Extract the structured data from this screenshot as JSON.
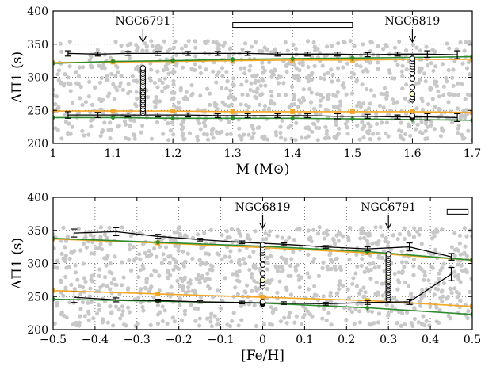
{
  "colors": {
    "background_points": "#c8c8c8",
    "black_series": "#000000",
    "orange_series": "#f5a623",
    "green_series": "#2e8b2e",
    "cluster_point_fill": "#ffffff",
    "cluster_point_yellow": "#ffffcc",
    "grid": "#555555"
  },
  "chart_data": [
    {
      "type": "scatter",
      "xlabel": "M (M⊙)",
      "ylabel": "ΔΠ1 (s)",
      "xlim": [
        1.0,
        1.7
      ],
      "ylim": [
        200,
        400
      ],
      "xticks": [
        "1",
        "1.1",
        "1.2",
        "1.3",
        "1.4",
        "1.5",
        "1.6",
        "1.7"
      ],
      "yticks": [
        "200",
        "250",
        "300",
        "350",
        "400"
      ],
      "grid": "dotted",
      "annotations": [
        {
          "text": "NGC6791",
          "x": 1.15
        },
        {
          "text": "NGC6819",
          "x": 1.6
        }
      ],
      "error_box": {
        "x_range": [
          1.3,
          1.5
        ],
        "y": 379
      },
      "series": [
        {
          "style": "black-errorbars",
          "x": [
            1.025,
            1.075,
            1.125,
            1.175,
            1.225,
            1.275,
            1.325,
            1.375,
            1.425,
            1.475,
            1.525,
            1.575,
            1.625,
            1.675
          ],
          "y": [
            336,
            335,
            336,
            336,
            336,
            336,
            336,
            335,
            335,
            335,
            334,
            335,
            335,
            334
          ],
          "err": [
            4,
            3,
            3,
            3,
            3,
            3,
            3,
            3,
            3,
            3,
            3,
            3,
            5,
            6
          ]
        },
        {
          "style": "black-errorbars",
          "x": [
            1.025,
            1.075,
            1.125,
            1.175,
            1.225,
            1.275,
            1.325,
            1.375,
            1.425,
            1.475,
            1.525,
            1.575,
            1.625,
            1.675
          ],
          "y": [
            243,
            243,
            243,
            243,
            243,
            242,
            242,
            242,
            242,
            241,
            241,
            240,
            240,
            239
          ],
          "err": [
            5,
            4,
            3,
            3,
            3,
            3,
            3,
            3,
            3,
            4,
            3,
            3,
            5,
            6
          ]
        },
        {
          "style": "orange-line",
          "x": [
            1.0,
            1.1,
            1.2,
            1.3,
            1.4,
            1.5,
            1.6,
            1.7
          ],
          "y": [
            322,
            323,
            324,
            325,
            326,
            326,
            327,
            327
          ]
        },
        {
          "style": "orange-line",
          "x": [
            1.0,
            1.1,
            1.2,
            1.3,
            1.4,
            1.5,
            1.6,
            1.7
          ],
          "y": [
            249,
            249,
            249,
            248,
            248,
            248,
            248,
            247
          ]
        },
        {
          "style": "green-line",
          "x": [
            1.0,
            1.1,
            1.2,
            1.3,
            1.4,
            1.5,
            1.6,
            1.7
          ],
          "y": [
            321,
            324,
            325,
            327,
            328,
            329,
            330,
            331
          ]
        },
        {
          "style": "green-line",
          "x": [
            1.0,
            1.1,
            1.2,
            1.3,
            1.4,
            1.5,
            1.6,
            1.7
          ],
          "y": [
            239,
            239,
            238,
            238,
            238,
            237,
            236,
            235
          ]
        }
      ],
      "cluster_points": [
        {
          "x": 1.15,
          "y": [
            246,
            249,
            252,
            256,
            259,
            262,
            265,
            268,
            271,
            274,
            277,
            280,
            283,
            286,
            290,
            293,
            296,
            299,
            302,
            305,
            308,
            311,
            314
          ]
        },
        {
          "x": 1.6,
          "y": [
            239,
            240,
            241,
            242,
            266,
            270,
            275,
            285,
            298,
            306,
            312,
            316,
            320,
            324,
            328
          ]
        }
      ]
    },
    {
      "type": "scatter",
      "xlabel": "[Fe/H]",
      "ylabel": "ΔΠ1 (s)",
      "xlim": [
        -0.5,
        0.5
      ],
      "ylim": [
        200,
        400
      ],
      "xticks": [
        "−0.5",
        "−0.4",
        "−0.3",
        "−0.2",
        "−0.1",
        "0",
        "0.1",
        "0.2",
        "0.3",
        "0.4",
        "0.5"
      ],
      "yticks": [
        "200",
        "250",
        "300",
        "350",
        "400"
      ],
      "grid": "dotted",
      "annotations": [
        {
          "text": "NGC6819",
          "x": 0.0
        },
        {
          "text": "NGC6791",
          "x": 0.3
        }
      ],
      "error_box": {
        "x_range": [
          0.44,
          0.49
        ],
        "y": 378
      },
      "series": [
        {
          "style": "black-errorbars",
          "x": [
            -0.45,
            -0.35,
            -0.25,
            -0.15,
            -0.05,
            0.05,
            0.15,
            0.25,
            0.35,
            0.45
          ],
          "y": [
            346,
            348,
            341,
            336,
            332,
            329,
            325,
            322,
            325,
            310
          ],
          "err": [
            6,
            6,
            3,
            2,
            2,
            2,
            2,
            3,
            6,
            5
          ]
        },
        {
          "style": "black-errorbars",
          "x": [
            -0.45,
            -0.35,
            -0.25,
            -0.15,
            -0.05,
            0.05,
            0.15,
            0.25,
            0.35,
            0.45
          ],
          "y": [
            249,
            245,
            244,
            242,
            241,
            240,
            239,
            241,
            242,
            284
          ],
          "err": [
            8,
            3,
            2,
            2,
            2,
            2,
            2,
            3,
            4,
            10
          ]
        },
        {
          "style": "orange-line",
          "x": [
            -0.5,
            -0.25,
            0.0,
            0.25,
            0.5
          ],
          "y": [
            337,
            331,
            324,
            316,
            305
          ]
        },
        {
          "style": "orange-line",
          "x": [
            -0.5,
            -0.25,
            0.0,
            0.25,
            0.5
          ],
          "y": [
            259,
            254,
            249,
            244,
            235
          ]
        },
        {
          "style": "green-line",
          "x": [
            -0.5,
            -0.25,
            0.0,
            0.25,
            0.5
          ],
          "y": [
            338,
            332,
            326,
            318,
            305
          ]
        },
        {
          "style": "green-line",
          "x": [
            -0.5,
            -0.25,
            0.0,
            0.25,
            0.5
          ],
          "y": [
            246,
            243,
            240,
            233,
            223
          ]
        }
      ],
      "cluster_points": [
        {
          "x": 0.0,
          "y": [
            239,
            240,
            241,
            242,
            266,
            270,
            275,
            285,
            298,
            306,
            312,
            316,
            320,
            324,
            328
          ]
        },
        {
          "x": 0.3,
          "y": [
            246,
            249,
            252,
            256,
            259,
            262,
            265,
            268,
            271,
            274,
            277,
            280,
            283,
            286,
            290,
            293,
            296,
            299,
            302,
            305,
            308,
            311,
            314
          ]
        }
      ]
    }
  ]
}
